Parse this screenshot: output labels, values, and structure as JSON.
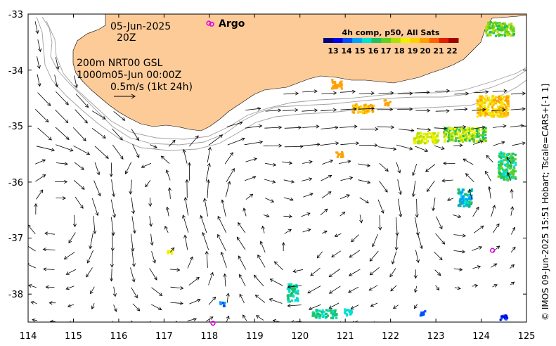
{
  "map": {
    "x_ticks": [
      "114",
      "115",
      "116",
      "117",
      "118",
      "119",
      "120",
      "121",
      "122",
      "123",
      "124",
      "125"
    ],
    "y_ticks": [
      "-33",
      "-34",
      "-35",
      "-36",
      "-37",
      "-38"
    ],
    "lon_range": [
      114,
      125
    ],
    "lat_range": [
      -38.5,
      -33
    ],
    "land_color": "#FCCB98",
    "argo_color": "#E000E0"
  },
  "info": {
    "date": "05-Jun-2025",
    "time": "20Z",
    "line3": "200m  NRT00 GSL",
    "line4": "1000m05-Jun 00:00Z",
    "scale": "0.5m/s (1kt 24h)"
  },
  "legend": {
    "argo_label": "Argo",
    "colorbar_title": "4h comp, p50, All Sats",
    "colorbar_ticks": [
      "13",
      "14",
      "15",
      "16",
      "17",
      "18",
      "19",
      "20",
      "21",
      "22"
    ],
    "colorbar_colors": [
      "#000080",
      "#0000E0",
      "#0050FF",
      "#00A0FF",
      "#00E0D0",
      "#20C060",
      "#60D020",
      "#B0E000",
      "#F0F000",
      "#FFD000",
      "#FFA000",
      "#FF6000",
      "#E02000",
      "#A00000"
    ]
  },
  "argo_floats": [
    {
      "lon": 118.05,
      "lat": -33.18
    },
    {
      "lon": 124.25,
      "lat": -37.22
    },
    {
      "lon": 118.08,
      "lat": -38.52
    }
  ],
  "credit": "© IMOS 09-Jun-2025 15:51 Hobart; Tscale=CARS+[-1 1]"
}
